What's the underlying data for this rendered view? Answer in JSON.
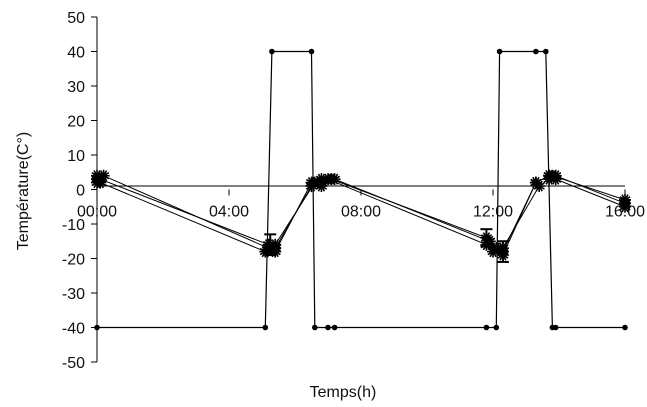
{
  "chart_data": {
    "type": "line",
    "xlabel": "Temps(h)",
    "ylabel": "Température(C°)",
    "x_unit": "hours",
    "xlim": [
      0,
      16
    ],
    "ylim": [
      -50,
      50
    ],
    "x_ticks": [
      {
        "value": 0,
        "label": "00:00"
      },
      {
        "value": 4,
        "label": "04:00"
      },
      {
        "value": 8,
        "label": "08:00"
      },
      {
        "value": 12,
        "label": "12:00"
      },
      {
        "value": 16,
        "label": "16:00"
      }
    ],
    "y_ticks": [
      50,
      40,
      30,
      20,
      10,
      0,
      -10,
      -20,
      -30,
      -40,
      -50
    ],
    "grid": false,
    "series": [
      {
        "role": "setpoint-step",
        "color": "#000000",
        "marker": "dot",
        "points": [
          [
            0,
            -40
          ],
          [
            5.1,
            -40
          ],
          [
            5.3,
            40
          ],
          [
            6.5,
            40
          ],
          [
            6.6,
            -40
          ],
          [
            7.0,
            -40
          ],
          [
            7.2,
            -40
          ],
          [
            11.8,
            -40
          ],
          [
            12.1,
            -40
          ],
          [
            12.2,
            40
          ],
          [
            13.3,
            40
          ],
          [
            13.6,
            40
          ],
          [
            13.8,
            -40
          ],
          [
            13.9,
            -40
          ],
          [
            16,
            -40
          ]
        ]
      },
      {
        "role": "measured-1",
        "color": "#000000",
        "marker": "star",
        "points": [
          [
            0,
            2
          ],
          [
            0.1,
            3
          ],
          [
            5.2,
            -16
          ],
          [
            5.4,
            -18
          ],
          [
            6.5,
            2
          ],
          [
            6.8,
            3
          ],
          [
            7.1,
            3
          ],
          [
            11.8,
            -14
          ],
          [
            12.1,
            -17
          ],
          [
            12.3,
            -18
          ],
          [
            13.3,
            2
          ],
          [
            13.7,
            4
          ],
          [
            13.9,
            4
          ],
          [
            16,
            -4
          ]
        ]
      },
      {
        "role": "measured-2",
        "color": "#000000",
        "marker": "star",
        "points": [
          [
            0,
            4
          ],
          [
            0.2,
            4
          ],
          [
            5.2,
            -17
          ],
          [
            5.4,
            -17
          ],
          [
            6.5,
            1
          ],
          [
            6.8,
            2
          ],
          [
            7.0,
            3
          ],
          [
            11.8,
            -16
          ],
          [
            12.0,
            -18
          ],
          [
            12.3,
            -17
          ],
          [
            13.4,
            1
          ],
          [
            13.7,
            3
          ],
          [
            13.9,
            3
          ],
          [
            16,
            -5
          ]
        ]
      },
      {
        "role": "measured-3",
        "color": "#000000",
        "marker": "star",
        "points": [
          [
            0,
            3
          ],
          [
            0.1,
            2
          ],
          [
            5.1,
            -18
          ],
          [
            5.4,
            -16
          ],
          [
            6.6,
            2
          ],
          [
            6.8,
            1
          ],
          [
            7.2,
            3
          ],
          [
            11.9,
            -15
          ],
          [
            12.1,
            -17
          ],
          [
            12.3,
            -19
          ],
          [
            13.3,
            2
          ],
          [
            13.7,
            4
          ],
          [
            13.8,
            4
          ],
          [
            16,
            -3
          ]
        ]
      }
    ],
    "error_bars": [
      {
        "x": 5.25,
        "y": -16,
        "err": 3
      },
      {
        "x": 11.8,
        "y": -14,
        "err": 2.5
      },
      {
        "x": 12.3,
        "y": -18,
        "err": 3
      }
    ]
  }
}
